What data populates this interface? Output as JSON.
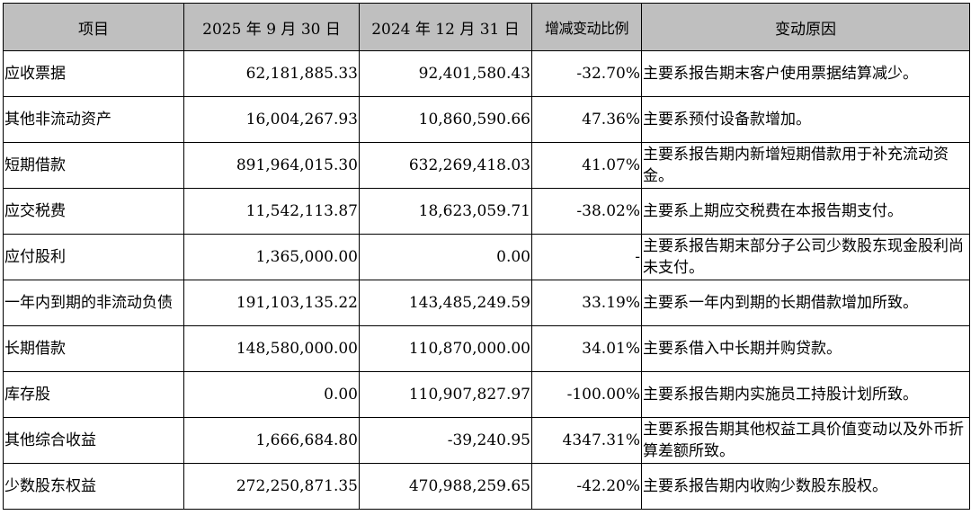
{
  "headers": {
    "item": "项目",
    "current": "2025 年 9 月 30 日",
    "previous": "2024 年 12 月 31 日",
    "change": "增减变动比例",
    "reason": "变动原因"
  },
  "rows": [
    {
      "item": "应收票据",
      "current": "62,181,885.33",
      "previous": "92,401,580.43",
      "change": "-32.70%",
      "reason": "主要系报告期末客户使用票据结算减少。"
    },
    {
      "item": "其他非流动资产",
      "current": "16,004,267.93",
      "previous": "10,860,590.66",
      "change": "47.36%",
      "reason": "主要系预付设备款增加。"
    },
    {
      "item": "短期借款",
      "current": "891,964,015.30",
      "previous": "632,269,418.03",
      "change": "41.07%",
      "reason": "主要系报告期内新增短期借款用于补充流动资金。"
    },
    {
      "item": "应交税费",
      "current": "11,542,113.87",
      "previous": "18,623,059.71",
      "change": "-38.02%",
      "reason": "主要系上期应交税费在本报告期支付。"
    },
    {
      "item": "应付股利",
      "current": "1,365,000.00",
      "previous": "0.00",
      "change": "-",
      "reason": "主要系报告期末部分子公司少数股东现金股利尚未支付。"
    },
    {
      "item": "一年内到期的非流动负债",
      "current": "191,103,135.22",
      "previous": "143,485,249.59",
      "change": "33.19%",
      "reason": "主要系一年内到期的长期借款增加所致。"
    },
    {
      "item": "长期借款",
      "current": "148,580,000.00",
      "previous": "110,870,000.00",
      "change": "34.01%",
      "reason": "主要系借入中长期并购贷款。"
    },
    {
      "item": "库存股",
      "current": "0.00",
      "previous": "110,907,827.97",
      "change": "-100.00%",
      "reason": "主要系报告期内实施员工持股计划所致。"
    },
    {
      "item": "其他综合收益",
      "current": "1,666,684.80",
      "previous": "-39,240.95",
      "change": "4347.31%",
      "reason": "主要系报告期其他权益工具价值变动以及外币折算差额所致。"
    },
    {
      "item": "少数股东权益",
      "current": "272,250,871.35",
      "previous": "470,988,259.65",
      "change": "-42.20%",
      "reason": "主要系报告期内收购少数股东股权。"
    }
  ]
}
